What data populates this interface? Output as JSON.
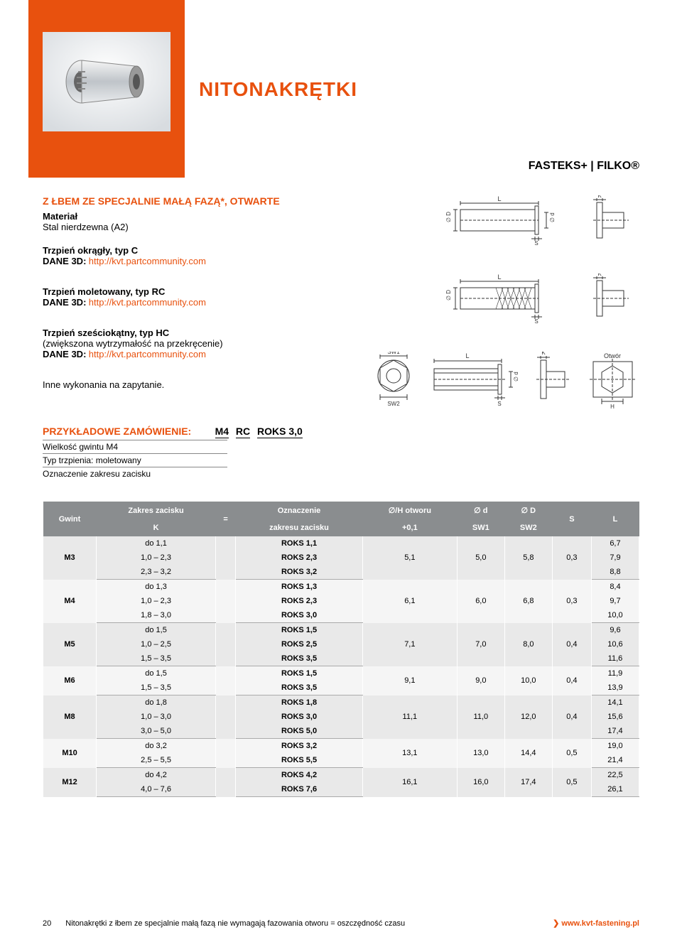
{
  "page_number": "20",
  "title": "NITONAKRĘTKI",
  "brand": "FASTEKS+ | FILKO®",
  "subtitle": "Z ŁBEM ZE SPECJALNIE MAŁĄ FAZĄ*, OTWARTE",
  "material_label": "Materiał",
  "material_value": "Stal nierdzewna (A2)",
  "variants": [
    {
      "name": "Trzpień okrągły, typ C",
      "sub": "",
      "dane_label": "DANE 3D:",
      "link": "http://kvt.partcommunity.com"
    },
    {
      "name": "Trzpień moletowany, typ RC",
      "sub": "",
      "dane_label": "DANE 3D:",
      "link": "http://kvt.partcommunity.com"
    },
    {
      "name": "Trzpień sześciokątny, typ HC",
      "sub": "(zwiększona wytrzymałość na przekręcenie)",
      "dane_label": "DANE 3D:",
      "link": "http://kvt.partcommunity.com"
    }
  ],
  "note": "Inne wykonania na zapytanie.",
  "order": {
    "title": "PRZYKŁADOWE ZAMÓWIENIE:",
    "parts": [
      "M4",
      "RC",
      "ROKS 3,0"
    ],
    "lines": [
      "Wielkość gwintu M4",
      "Typ trzpienia: moletowany",
      "Oznaczenie zakresu zacisku"
    ]
  },
  "table": {
    "headers": {
      "gwint": "Gwint",
      "zakres": "Zakres zacisku",
      "zakres_sub": "K",
      "eq": "=",
      "ozn": "Oznaczenie",
      "ozn_sub": "zakresu zacisku",
      "h": "∅/H otworu",
      "h_sub": "+0,1",
      "d": "∅ d",
      "d_sub": "SW1",
      "D": "∅ D",
      "D_sub": "SW2",
      "S": "S",
      "L": "L"
    },
    "groups": [
      {
        "gwint": "M3",
        "h": "5,1",
        "d": "5,0",
        "D": "5,8",
        "S": "0,3",
        "rows": [
          {
            "zakres": "do 1,1",
            "ozn": "ROKS 1,1",
            "L": "6,7"
          },
          {
            "zakres": "1,0 – 2,3",
            "ozn": "ROKS 2,3",
            "L": "7,9"
          },
          {
            "zakres": "2,3 – 3,2",
            "ozn": "ROKS 3,2",
            "L": "8,8"
          }
        ]
      },
      {
        "gwint": "M4",
        "h": "6,1",
        "d": "6,0",
        "D": "6,8",
        "S": "0,3",
        "rows": [
          {
            "zakres": "do 1,3",
            "ozn": "ROKS 1,3",
            "L": "8,4"
          },
          {
            "zakres": "1,0 – 2,3",
            "ozn": "ROKS 2,3",
            "L": "9,7"
          },
          {
            "zakres": "1,8 – 3,0",
            "ozn": "ROKS 3,0",
            "L": "10,0"
          }
        ]
      },
      {
        "gwint": "M5",
        "h": "7,1",
        "d": "7,0",
        "D": "8,0",
        "S": "0,4",
        "rows": [
          {
            "zakres": "do 1,5",
            "ozn": "ROKS 1,5",
            "L": "9,6"
          },
          {
            "zakres": "1,0 – 2,5",
            "ozn": "ROKS 2,5",
            "L": "10,6"
          },
          {
            "zakres": "1,5 – 3,5",
            "ozn": "ROKS 3,5",
            "L": "11,6"
          }
        ]
      },
      {
        "gwint": "M6",
        "h": "9,1",
        "d": "9,0",
        "D": "10,0",
        "S": "0,4",
        "rows": [
          {
            "zakres": "do 1,5",
            "ozn": "ROKS 1,5",
            "L": "11,9"
          },
          {
            "zakres": "1,5 – 3,5",
            "ozn": "ROKS 3,5",
            "L": "13,9"
          }
        ]
      },
      {
        "gwint": "M8",
        "h": "11,1",
        "d": "11,0",
        "D": "12,0",
        "S": "0,4",
        "rows": [
          {
            "zakres": "do 1,8",
            "ozn": "ROKS 1,8",
            "L": "14,1"
          },
          {
            "zakres": "1,0 – 3,0",
            "ozn": "ROKS 3,0",
            "L": "15,6"
          },
          {
            "zakres": "3,0 – 5,0",
            "ozn": "ROKS 5,0",
            "L": "17,4"
          }
        ]
      },
      {
        "gwint": "M10",
        "h": "13,1",
        "d": "13,0",
        "D": "14,4",
        "S": "0,5",
        "rows": [
          {
            "zakres": "do 3,2",
            "ozn": "ROKS 3,2",
            "L": "19,0"
          },
          {
            "zakres": "2,5 – 5,5",
            "ozn": "ROKS 5,5",
            "L": "21,4"
          }
        ]
      },
      {
        "gwint": "M12",
        "h": "16,1",
        "d": "16,0",
        "D": "17,4",
        "S": "0,5",
        "rows": [
          {
            "zakres": "do 4,2",
            "ozn": "ROKS 4,2",
            "L": "22,5"
          },
          {
            "zakres": "4,0 – 7,6",
            "ozn": "ROKS 7,6",
            "L": "26,1"
          }
        ]
      }
    ]
  },
  "footer_text": "Nitonakrętki z łbem ze specjalnie małą fazą nie wymagają fazowania otworu = oszczędność czasu",
  "footer_url": "www.kvt-fastening.pl",
  "diagram_labels": {
    "L": "L",
    "K": "K",
    "S": "S",
    "D": "∅ D",
    "d": "∅ d",
    "SW1": "SW1",
    "SW2": "SW2",
    "H": "H",
    "otwor": "Otwór"
  },
  "colors": {
    "accent": "#e8510e",
    "header_grey": "#8a8d8f",
    "row_light": "#f5f5f5",
    "row_dark": "#e9e9e9",
    "line": "#333333"
  }
}
